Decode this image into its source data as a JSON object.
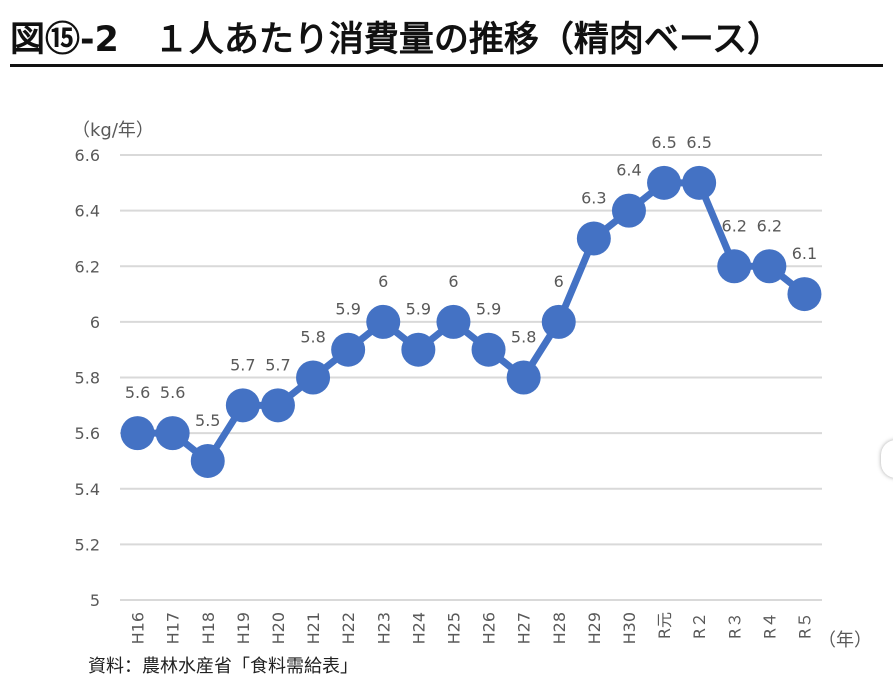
{
  "title": "図⑮-2　１人あたり消費量の推移（精肉ベース）",
  "source": "資料：農林水産省「食料需給表」",
  "chart_data": {
    "type": "line",
    "title": "図⑮-2　１人あたり消費量の推移（精肉ベース）",
    "ylabel": "（kg/年）",
    "xlabel": "（年）",
    "categories": [
      "H16",
      "H17",
      "H18",
      "H19",
      "H20",
      "H21",
      "H22",
      "H23",
      "H24",
      "H25",
      "H26",
      "H27",
      "H28",
      "H29",
      "H30",
      "R元",
      "R２",
      "R３",
      "R４",
      "R５"
    ],
    "series": [
      {
        "values": [
          5.6,
          5.6,
          5.5,
          5.7,
          5.7,
          5.8,
          5.9,
          6,
          5.9,
          6,
          5.9,
          5.8,
          6,
          6.3,
          6.4,
          6.5,
          6.5,
          6.2,
          6.2,
          6.1
        ]
      }
    ],
    "data_labels": [
      "5.6",
      "5.6",
      "5.5",
      "5.7",
      "5.7",
      "5.8",
      "5.9",
      "6",
      "5.9",
      "6",
      "5.9",
      "5.8",
      "6",
      "6.3",
      "6.4",
      "6.5",
      "6.5",
      "6.2",
      "6.2",
      "6.1"
    ],
    "ylim": [
      5,
      6.6
    ],
    "yticks": [
      "5",
      "5.2",
      "5.4",
      "5.6",
      "5.8",
      "6",
      "6.2",
      "6.4",
      "6.6"
    ],
    "grid": true,
    "colors": {
      "line": "#4472C4",
      "grid": "#d9d9d9",
      "text": "#595959"
    }
  }
}
